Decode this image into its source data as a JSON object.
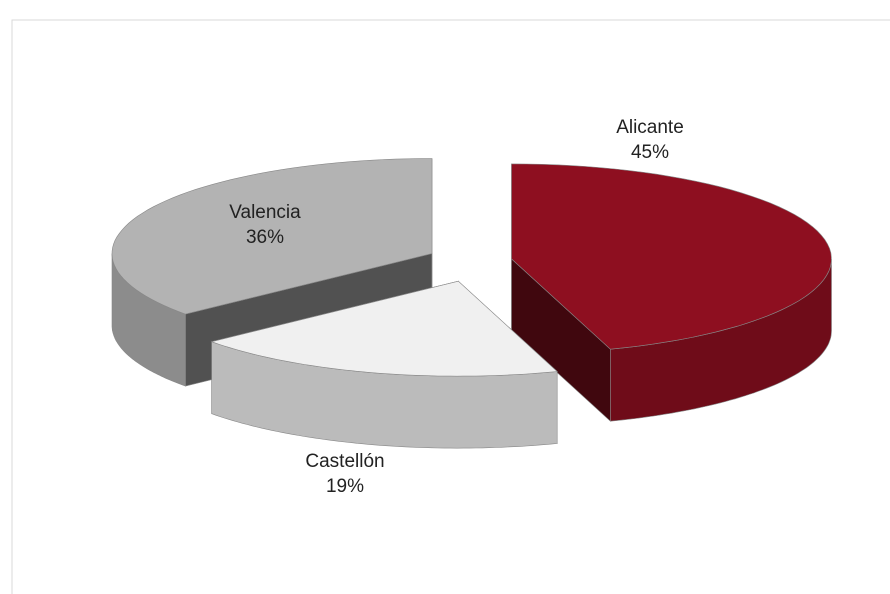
{
  "chart_data": {
    "type": "pie",
    "categories": [
      "Alicante",
      "Castellón",
      "Valencia"
    ],
    "values": [
      45,
      19,
      36
    ],
    "value_labels": [
      "45%",
      "19%",
      "36%"
    ],
    "colors": [
      "#8e0f20",
      "#f0f0f0",
      "#b3b3b3"
    ]
  }
}
